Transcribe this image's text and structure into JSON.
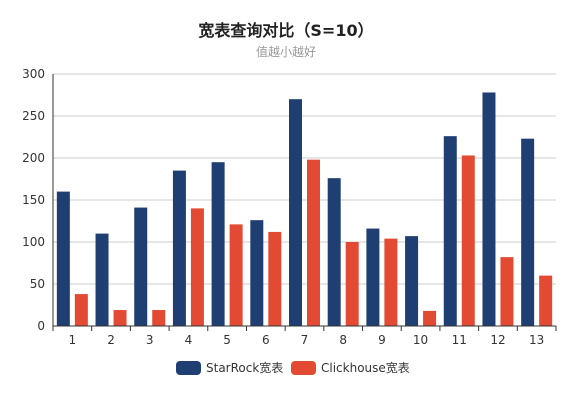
{
  "chart_data": {
    "type": "bar",
    "title": "宽表查询对比（S=10）",
    "subtitle": "值越小越好",
    "categories": [
      "1",
      "2",
      "3",
      "4",
      "5",
      "6",
      "7",
      "8",
      "9",
      "10",
      "11",
      "12",
      "13"
    ],
    "y_ticks": [
      "0",
      "50",
      "100",
      "150",
      "200",
      "250",
      "300"
    ],
    "ylim": [
      0,
      300
    ],
    "grid": true,
    "legend_position": "bottom-center",
    "series": [
      {
        "name": "StarRock宽表",
        "color": "#1f3f73",
        "values": [
          160,
          110,
          141,
          185,
          195,
          126,
          270,
          176,
          116,
          107,
          226,
          278,
          223
        ]
      },
      {
        "name": "Clickhouse宽表",
        "color": "#e34a33",
        "values": [
          38,
          19,
          19,
          140,
          121,
          112,
          198,
          100,
          104,
          18,
          203,
          82,
          60
        ]
      }
    ]
  }
}
